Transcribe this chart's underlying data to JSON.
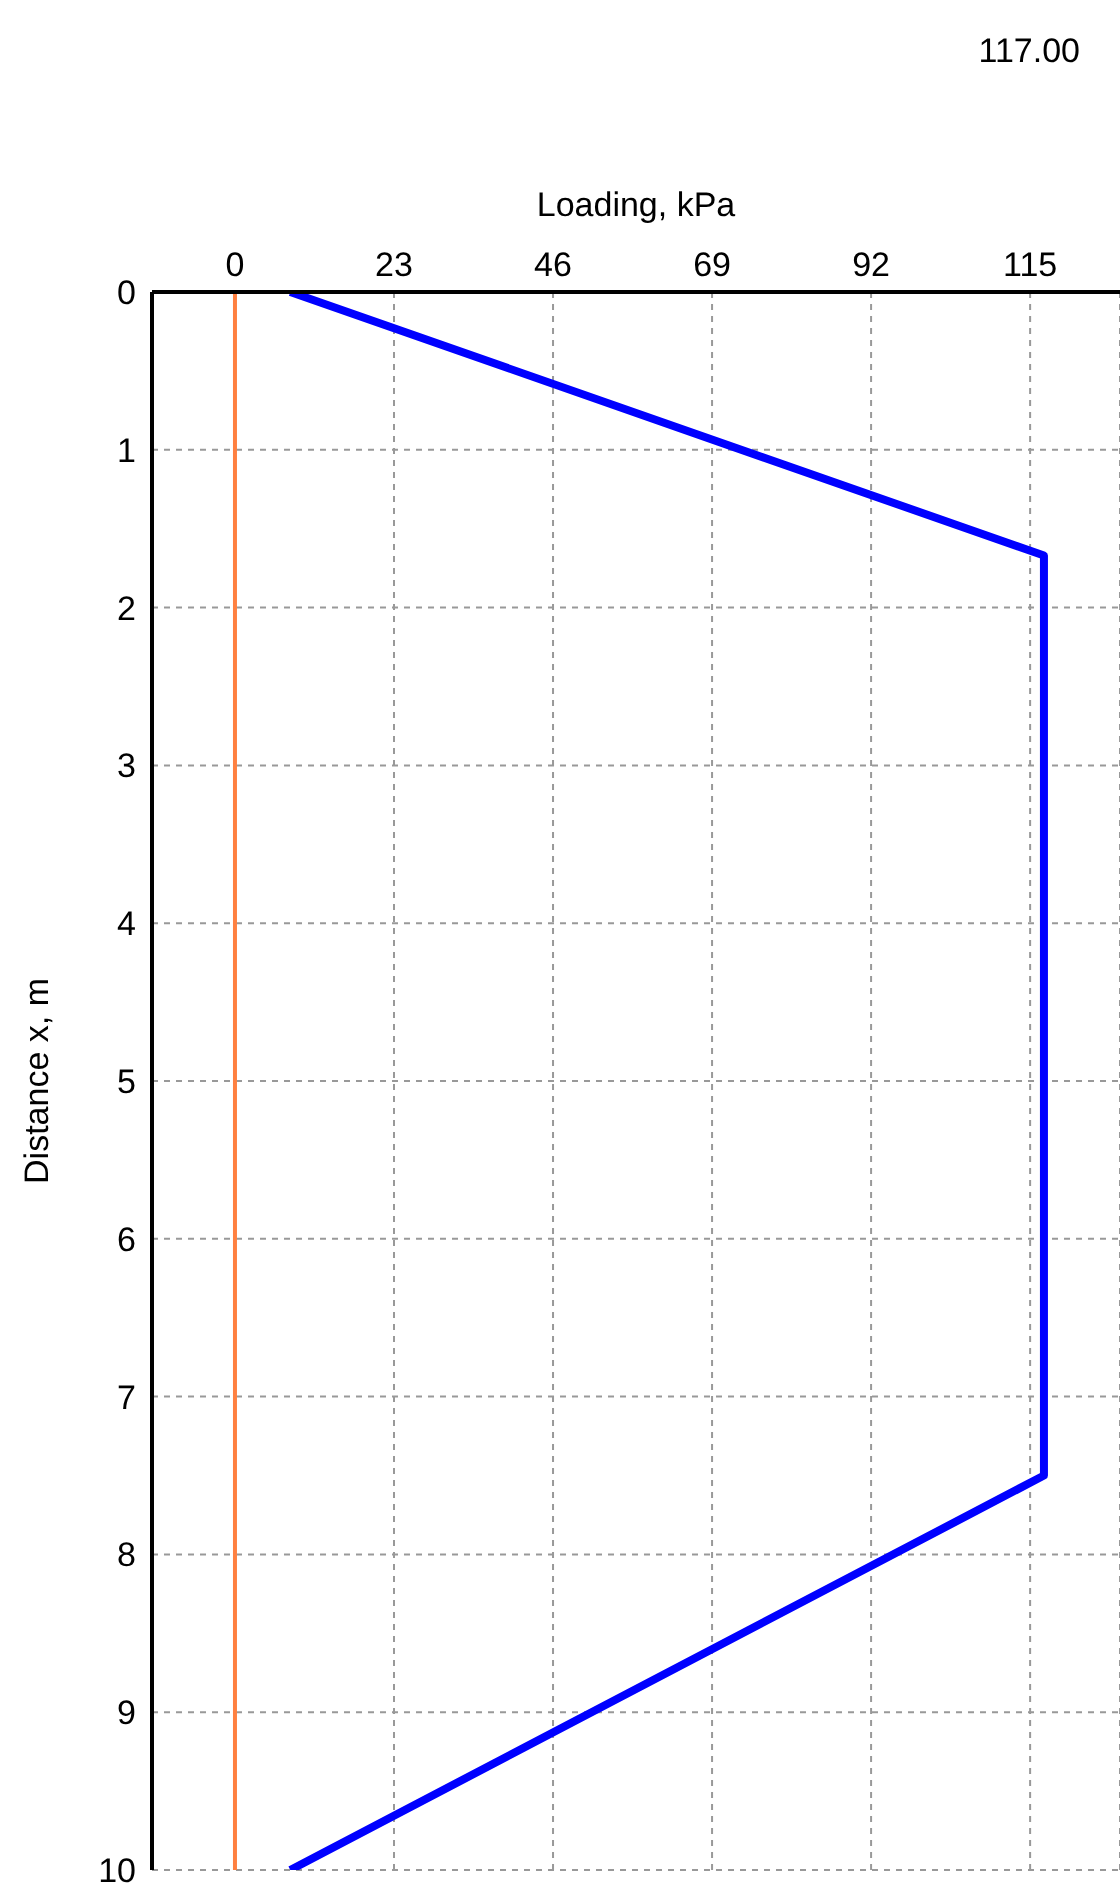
{
  "chart_data": {
    "type": "line",
    "xlabel": "Loading, kPa",
    "ylabel": "Distance x, m",
    "annotations": [
      "117.00"
    ],
    "xlim": [
      -12,
      128
    ],
    "xticks": [
      0,
      23,
      46,
      69,
      92,
      115
    ],
    "ylim": [
      10,
      0
    ],
    "yticks": [
      0,
      1,
      2,
      3,
      4,
      5,
      6,
      7,
      8,
      9,
      10
    ],
    "grid": true,
    "marker": "none",
    "line_style": "solid",
    "series": [
      {
        "color": "#0000ff",
        "x": [
          8,
          117,
          117,
          8
        ],
        "values": [
          0,
          1.67,
          7.5,
          10
        ]
      },
      {
        "color": "#ff8040",
        "x": [
          0,
          0
        ],
        "values": [
          0,
          10
        ]
      }
    ]
  }
}
